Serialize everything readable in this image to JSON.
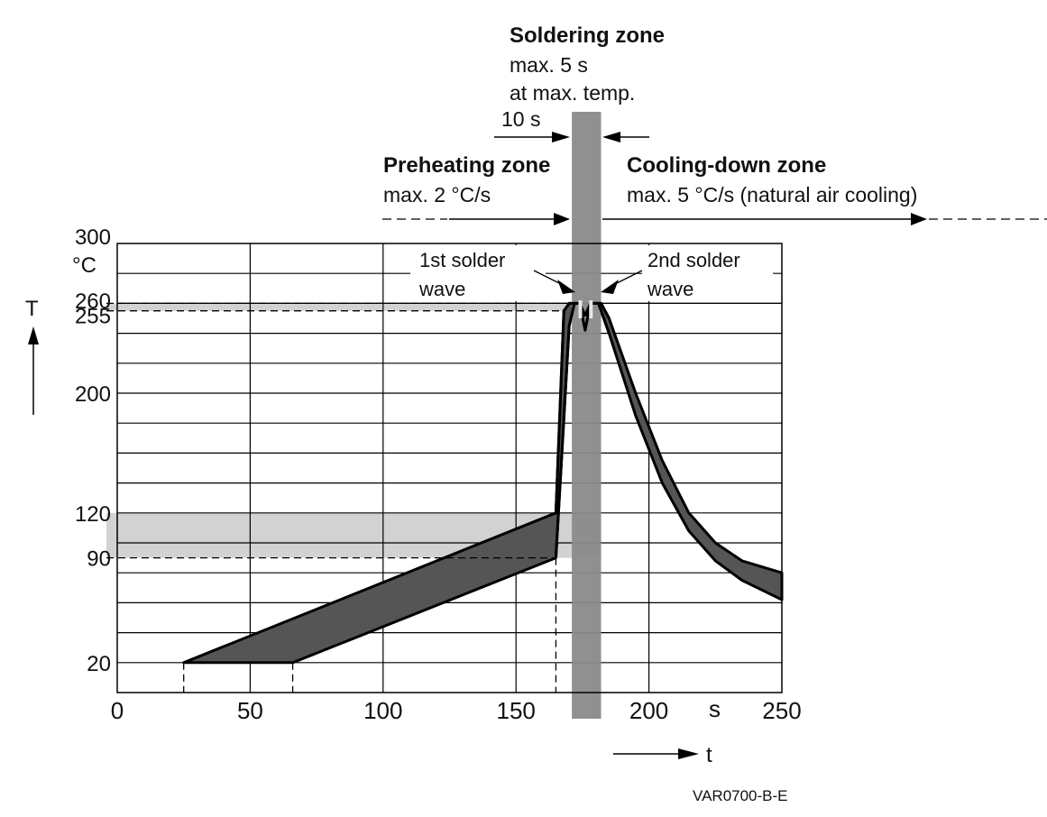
{
  "chart_data": {
    "type": "area",
    "x_unit": "s",
    "y_unit": "°C",
    "x_axis_symbol": "t",
    "y_axis_symbol": "T",
    "xlim": [
      0,
      250
    ],
    "ylim": [
      0,
      300
    ],
    "x_ticks": [
      "0",
      "50",
      "100",
      "150",
      "200",
      "250"
    ],
    "y_ticks": [
      "20",
      "90",
      "120",
      "200",
      "255",
      "260",
      "300"
    ],
    "grid": true,
    "figure_code": "VAR0700-B-E",
    "zones": {
      "soldering": {
        "title": "Soldering zone",
        "line1": "max. 5 s",
        "line2": "at max. temp.",
        "x_range": [
          171,
          182
        ]
      },
      "preheating": {
        "title": "Preheating zone",
        "rate": "max. 2 °C/s"
      },
      "cooling": {
        "title": "Cooling-down zone",
        "rate": "max. 5 °C/s (natural air cooling)"
      }
    },
    "time_annotation": "10 s",
    "wave_labels": {
      "first": {
        "line1": "1st solder",
        "line2": "wave"
      },
      "second": {
        "line1": "2nd solder",
        "line2": "wave"
      }
    },
    "shaded_ranges": [
      {
        "y_range": [
          90,
          120
        ]
      },
      {
        "y_range": [
          255,
          260
        ]
      }
    ],
    "series": [
      {
        "values": [
          [
            25,
            20
          ],
          [
            165,
            120
          ],
          [
            168,
            255
          ],
          [
            170,
            260
          ],
          [
            174,
            260
          ],
          [
            176,
            252
          ],
          [
            178,
            260
          ],
          [
            182,
            260
          ],
          [
            185,
            250
          ],
          [
            195,
            200
          ],
          [
            205,
            155
          ],
          [
            215,
            120
          ],
          [
            225,
            100
          ],
          [
            235,
            88
          ],
          [
            250,
            80
          ]
        ]
      },
      {
        "values": [
          [
            66,
            20
          ],
          [
            165,
            90
          ],
          [
            170,
            245
          ],
          [
            172,
            260
          ],
          [
            174,
            260
          ],
          [
            176,
            242
          ],
          [
            178,
            260
          ],
          [
            181,
            260
          ],
          [
            185,
            240
          ],
          [
            195,
            185
          ],
          [
            205,
            140
          ],
          [
            215,
            108
          ],
          [
            225,
            88
          ],
          [
            235,
            75
          ],
          [
            250,
            62
          ]
        ]
      }
    ]
  }
}
